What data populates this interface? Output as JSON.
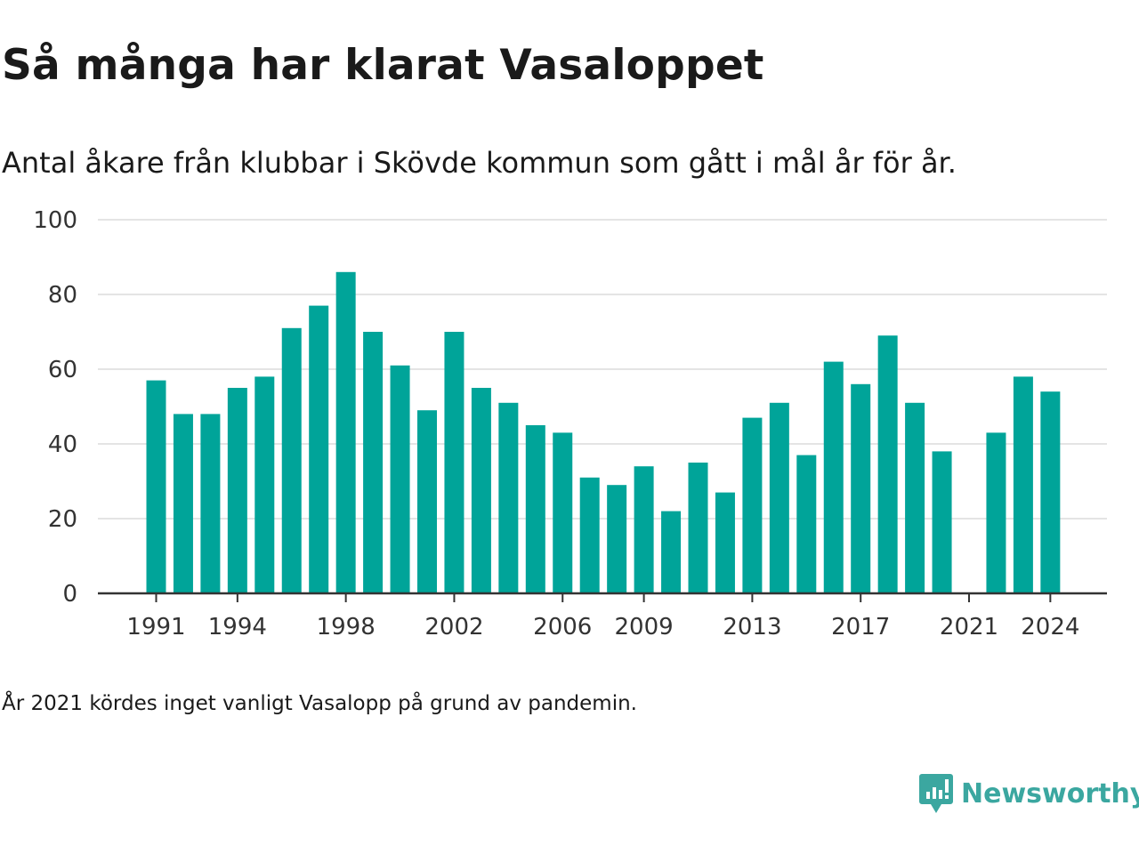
{
  "header": {
    "title": "Så många har klarat Vasaloppet",
    "subtitle": "Antal åkare från klubbar i Skövde kommun som gått i mål år för år."
  },
  "footer": {
    "note": "År 2021 kördes inget vanligt Vasalopp på grund av pandemin.",
    "brand": "Newsworthy",
    "brand_icon": "newsworthy-logo-icon"
  },
  "colors": {
    "bar": "#00a499",
    "grid": "#dcdcdc",
    "axis": "#333333",
    "brand": "#3ba7a0"
  },
  "chart_data": {
    "type": "bar",
    "title": "Så många har klarat Vasaloppet",
    "subtitle": "Antal åkare från klubbar i Skövde kommun som gått i mål år för år.",
    "categories": [
      1991,
      1992,
      1993,
      1994,
      1995,
      1996,
      1997,
      1998,
      1999,
      2000,
      2001,
      2002,
      2003,
      2004,
      2005,
      2006,
      2007,
      2008,
      2009,
      2010,
      2011,
      2012,
      2013,
      2014,
      2015,
      2016,
      2017,
      2018,
      2019,
      2020,
      2021,
      2022,
      2023,
      2024
    ],
    "values": [
      57,
      48,
      48,
      55,
      58,
      71,
      77,
      86,
      70,
      61,
      49,
      70,
      55,
      51,
      45,
      43,
      31,
      29,
      34,
      22,
      35,
      27,
      47,
      51,
      37,
      62,
      56,
      69,
      51,
      38,
      null,
      43,
      58,
      54
    ],
    "x_tick_labels": [
      "1991",
      "1994",
      "1998",
      "2002",
      "2006",
      "2009",
      "2013",
      "2017",
      "2021",
      "2024"
    ],
    "y_ticks": [
      0,
      20,
      40,
      60,
      80,
      100
    ],
    "ylim": [
      0,
      100
    ],
    "xlabel": "",
    "ylabel": "",
    "grid": "horizontal",
    "legend": "none"
  }
}
